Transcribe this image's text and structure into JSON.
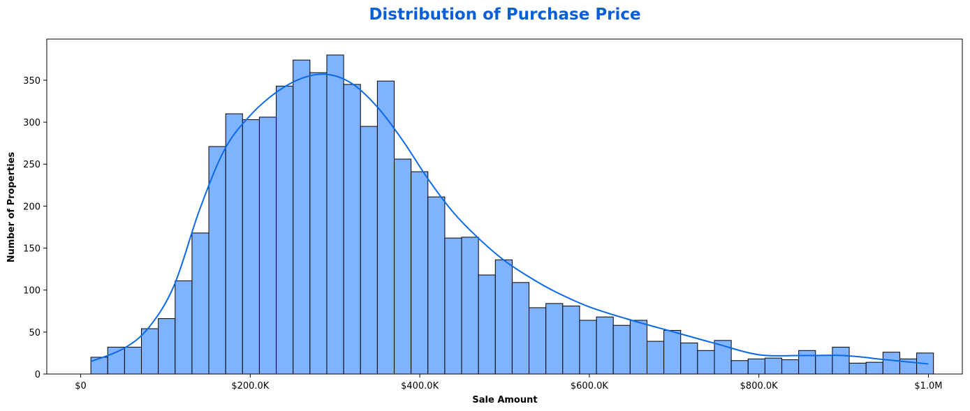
{
  "chart_data": {
    "type": "histogram",
    "title": "Distribution of Purchase Price",
    "xlabel": "Sale Amount",
    "ylabel": "Number of Properties",
    "xlim": [
      -40000,
      1040000
    ],
    "ylim": [
      0,
      399
    ],
    "bin_start": 12000,
    "bin_width": 19880,
    "values": [
      20,
      32,
      32,
      54,
      66,
      111,
      168,
      271,
      310,
      303,
      306,
      343,
      374,
      359,
      380,
      345,
      295,
      349,
      256,
      241,
      211,
      162,
      163,
      118,
      136,
      109,
      79,
      84,
      81,
      64,
      68,
      58,
      64,
      39,
      52,
      37,
      28,
      40,
      16,
      18,
      19,
      17,
      28,
      22,
      32,
      13,
      14,
      26,
      18,
      25
    ],
    "kde": {
      "x": [
        12000,
        50000,
        80000,
        110000,
        140000,
        170000,
        200000,
        230000,
        260000,
        290000,
        320000,
        350000,
        380000,
        410000,
        440000,
        470000,
        500000,
        530000,
        560000,
        600000,
        650000,
        700000,
        750000,
        800000,
        850000,
        900000,
        950000,
        1000000
      ],
      "y": [
        15,
        30,
        55,
        105,
        195,
        268,
        308,
        335,
        352,
        357,
        346,
        318,
        278,
        232,
        192,
        161,
        135,
        115,
        98,
        80,
        64,
        50,
        36,
        23,
        22,
        22,
        17,
        12
      ]
    },
    "xticks": [
      0,
      200000,
      400000,
      600000,
      800000,
      1000000
    ],
    "xtick_labels": [
      "$0",
      "$200.0K",
      "$400.0K",
      "$600.0K",
      "$800.0K",
      "$1.0M"
    ],
    "yticks": [
      0,
      50,
      100,
      150,
      200,
      250,
      300,
      350
    ],
    "ytick_labels": [
      "0",
      "50",
      "100",
      "150",
      "200",
      "250",
      "300",
      "350"
    ],
    "colors": {
      "bar": "#80b3ff",
      "kde": "#0a6ae6",
      "title": "#0a5fd6"
    }
  }
}
